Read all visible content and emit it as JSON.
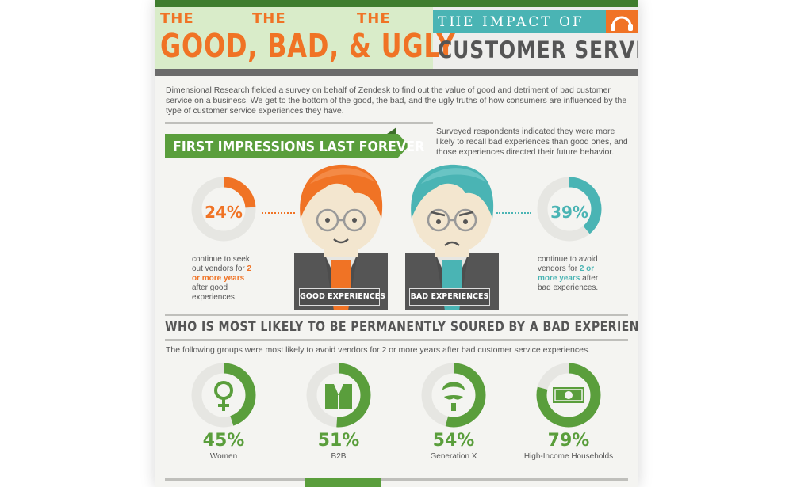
{
  "header": {
    "the1": "THE",
    "the2": "THE",
    "the3": "THE",
    "main": "GOOD, BAD, & UGLY",
    "impact": "THE IMPACT OF",
    "customer_service": "CUSTOMER SERVICE",
    "icon": "headset-icon"
  },
  "intro": "Dimensional Research fielded a survey on behalf of Zendesk to find out the value of good and detriment of bad customer service on a business. We get to the bottom of the good, the bad, and the ugly truths of how consumers are influenced by the type of customer service experiences they have.",
  "first_impressions": {
    "banner": "FIRST IMPRESSIONS LAST FOREVER",
    "note": "Surveyed respondents indicated they were more likely to recall bad experiences than good ones, and those experiences directed their future behavior.",
    "good": {
      "percent_label": "24%",
      "percent": 24,
      "caption_pre": "continue to seek out vendors for ",
      "caption_highlight": "2 or more years",
      "caption_post": " after good experiences.",
      "badge": "GOOD EXPERIENCES",
      "color": "#f07325"
    },
    "bad": {
      "percent_label": "39%",
      "percent": 39,
      "caption_pre": "continue to avoid vendors for ",
      "caption_highlight": "2 or more years",
      "caption_post": " after bad experiences.",
      "badge": "BAD EXPERIENCES",
      "color": "#4ab4b4"
    }
  },
  "soured": {
    "title": "WHO IS MOST LIKELY TO BE PERMANENTLY SOURED BY A BAD EXPERIENCE?",
    "subtitle": "The following groups were most likely to avoid vendors for 2 or more years after bad customer service experiences.",
    "groups": [
      {
        "percent_label": "45%",
        "percent": 45,
        "label": "Women",
        "icon": "female-symbol-icon"
      },
      {
        "percent_label": "51%",
        "percent": 51,
        "label": "B2B",
        "icon": "suit-jacket-icon"
      },
      {
        "percent_label": "54%",
        "percent": 54,
        "label": "Generation X",
        "icon": "mustache-man-icon"
      },
      {
        "percent_label": "79%",
        "percent": 79,
        "label": "High-Income Households",
        "icon": "money-bill-icon"
      }
    ],
    "color": "#5a9e3c"
  }
}
